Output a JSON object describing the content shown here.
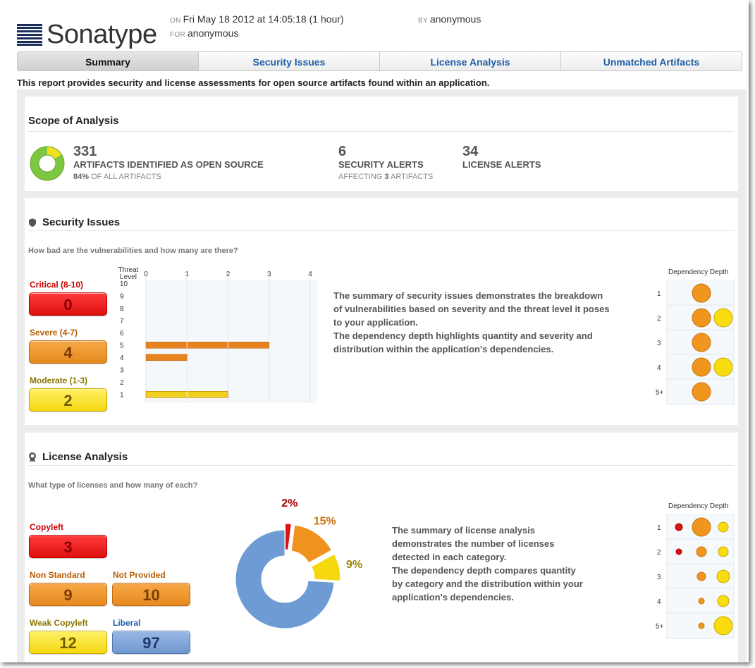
{
  "header": {
    "brand": "Sonatype",
    "on_label": "ON",
    "date": "Fri May 18 2012 at 14:05:18 (1 hour)",
    "for_label": "FOR",
    "for_value": "anonymous",
    "by_label": "BY",
    "by_value": "anonymous"
  },
  "tabs": [
    {
      "label": "Summary",
      "active": true
    },
    {
      "label": "Security Issues",
      "active": false
    },
    {
      "label": "License Analysis",
      "active": false
    },
    {
      "label": "Unmatched Artifacts",
      "active": false
    }
  ],
  "intro": "This report provides security and license assessments for open source artifacts found within an application.",
  "scope": {
    "title": "Scope of Analysis",
    "artifacts_count": "331",
    "artifacts_label": "ARTIFACTS IDENTIFIED AS OPEN SOURCE",
    "artifacts_pct": "84%",
    "artifacts_pct_label": "OF ALL ARTIFACTS",
    "artifacts_fraction": 0.84,
    "security_count": "6",
    "security_label": "SECURITY ALERTS",
    "security_sub_pre": "AFFECTING",
    "security_sub_num": "3",
    "security_sub_post": "ARTIFACTS",
    "license_count": "34",
    "license_label": "LICENSE ALERTS"
  },
  "security": {
    "title": "Security Issues",
    "question": "How bad are the vulnerabilities and how many are there?",
    "levels": [
      {
        "label": "Critical (8-10)",
        "value": "0",
        "color": "#cc0000"
      },
      {
        "label": "Severe (4-7)",
        "value": "4",
        "color": "#b85c00"
      },
      {
        "label": "Moderate (1-3)",
        "value": "2",
        "color": "#8a7600"
      }
    ],
    "description": [
      "The summary of security issues demonstrates the breakdown",
      "of vulnerabilities based on severity and the threat level it poses",
      "to your application.",
      "The dependency depth highlights quantity and severity and",
      "distribution within the application's dependencies."
    ],
    "dependency_title": "Dependency Depth",
    "dependency_rows": [
      "1",
      "2",
      "3",
      "4",
      "5+"
    ]
  },
  "security_chart": {
    "type": "bar",
    "ylabel": "Threat Level",
    "x_ticks": [
      "0",
      "1",
      "2",
      "3",
      "4"
    ],
    "xlim": [
      0,
      4
    ],
    "categories": [
      "10",
      "9",
      "8",
      "7",
      "6",
      "5",
      "4",
      "3",
      "2",
      "1"
    ],
    "values": [
      0,
      0,
      0,
      0,
      0,
      3,
      1,
      0,
      0,
      2
    ],
    "colors": [
      "#e8821e",
      "#e8821e",
      "#e8821e",
      "#e8821e",
      "#e8821e",
      "#e8821e",
      "#e8821e",
      "#f0d020",
      "#f0d020",
      "#f0d020"
    ]
  },
  "license": {
    "title": "License Analysis",
    "question": "What type of licenses and how many of each?",
    "categories": [
      {
        "label": "Copyleft",
        "value": "3",
        "label_color": "#cc0000"
      },
      {
        "label": "Non Standard",
        "value": "9",
        "label_color": "#b85c00"
      },
      {
        "label": "Not Provided",
        "value": "10",
        "label_color": "#b85c00"
      },
      {
        "label": "Weak Copyleft",
        "value": "12",
        "label_color": "#8a7600"
      },
      {
        "label": "Liberal",
        "value": "97",
        "label_color": "#1f5fa8"
      }
    ],
    "description": [
      "The summary of license analysis",
      "demonstrates the number of licenses",
      "detected in each category.",
      "The dependency depth compares quantity",
      "by category and the distribution within your",
      "application's dependencies."
    ],
    "dependency_title": "Dependency Depth",
    "dependency_rows": [
      "1",
      "2",
      "3",
      "4",
      "5+"
    ]
  },
  "chart_data": {
    "type": "pie",
    "labels": [
      "2%",
      "15%",
      "9%",
      ""
    ],
    "values": [
      2,
      15,
      9,
      74
    ],
    "colors": [
      "#dd1111",
      "#f2921e",
      "#f5d810",
      "#6f9bd4"
    ],
    "label_colors": [
      "#aa0000",
      "#c8700a",
      "#9a8400",
      ""
    ]
  }
}
